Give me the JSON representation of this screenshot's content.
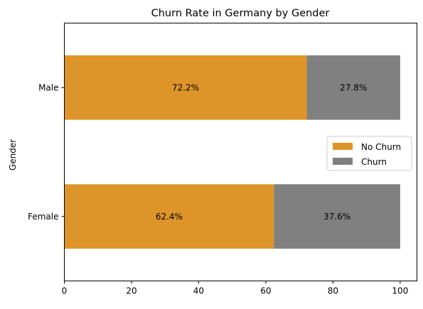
{
  "chart_data": {
    "type": "bar",
    "orientation": "horizontal",
    "stacked": true,
    "title": "Churn Rate in Germany by Gender",
    "xlabel": "",
    "ylabel": "Gender",
    "xlim": [
      0,
      105
    ],
    "xticks": [
      0,
      20,
      40,
      60,
      80,
      100
    ],
    "categories": [
      "Female",
      "Male"
    ],
    "series": [
      {
        "name": "No Churn",
        "values": [
          62.4,
          72.2
        ],
        "color": "#dd9529",
        "labels": [
          "62.4%",
          "72.2%"
        ]
      },
      {
        "name": "Churn",
        "values": [
          37.6,
          27.8
        ],
        "color": "#808080",
        "labels": [
          "37.6%",
          "27.8%"
        ]
      }
    ],
    "grid": false,
    "legend_position": "center-right"
  }
}
